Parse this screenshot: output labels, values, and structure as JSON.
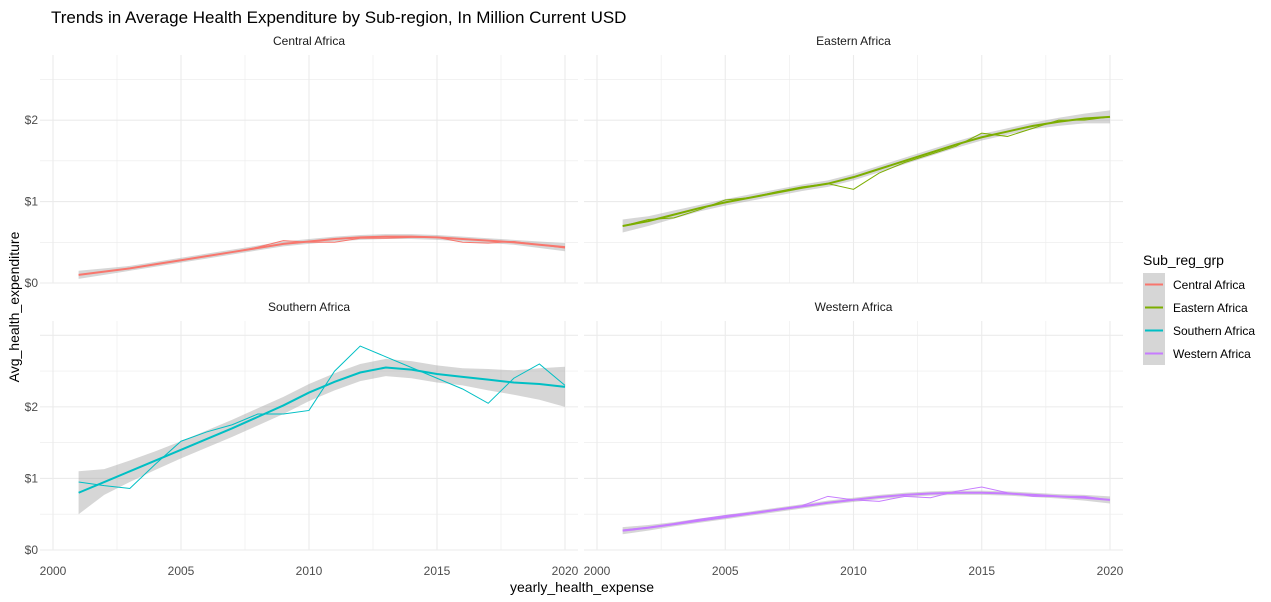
{
  "chart_data": {
    "type": "line",
    "title": "Trends in Average Health Expenditure by Sub-region, In Million Current  USD",
    "xlabel": "yearly_health_expense",
    "ylabel": "Avg_health_expenditure",
    "xlim": [
      2000,
      2020
    ],
    "x_ticks": [
      2000,
      2005,
      2010,
      2015,
      2020
    ],
    "x_tick_labels": [
      "2000",
      "2005",
      "2010",
      "2015",
      "2020"
    ],
    "y_ticks": [
      0,
      1,
      2
    ],
    "y_tick_labels": [
      "$0",
      "$1",
      "$2"
    ],
    "facet_rows": [
      {
        "panels": [
          "Central Africa",
          "Eastern Africa"
        ],
        "ylim": [
          0,
          2.8
        ]
      },
      {
        "panels": [
          "Southern Africa",
          "Western Africa"
        ],
        "ylim": [
          0,
          3.2
        ]
      }
    ],
    "grid": true,
    "legend": {
      "title": "Sub_reg_grp",
      "position": "right"
    },
    "smooth": "loess with grey confidence band",
    "x": [
      2001,
      2002,
      2003,
      2004,
      2005,
      2006,
      2007,
      2008,
      2009,
      2010,
      2011,
      2012,
      2013,
      2014,
      2015,
      2016,
      2017,
      2018,
      2019,
      2020
    ],
    "series": [
      {
        "name": "Central Africa",
        "color": "#F8766D",
        "values": [
          0.1,
          0.14,
          0.18,
          0.23,
          0.28,
          0.33,
          0.38,
          0.44,
          0.52,
          0.5,
          0.5,
          0.55,
          0.55,
          0.56,
          0.56,
          0.5,
          0.49,
          0.51,
          0.47,
          0.43
        ],
        "smooth": [
          0.1,
          0.14,
          0.18,
          0.23,
          0.28,
          0.33,
          0.38,
          0.43,
          0.48,
          0.51,
          0.54,
          0.56,
          0.57,
          0.57,
          0.56,
          0.54,
          0.52,
          0.5,
          0.47,
          0.44
        ],
        "band": [
          0.05,
          0.04,
          0.03,
          0.03,
          0.03,
          0.03,
          0.03,
          0.03,
          0.03,
          0.03,
          0.03,
          0.03,
          0.03,
          0.03,
          0.03,
          0.03,
          0.03,
          0.03,
          0.04,
          0.05
        ]
      },
      {
        "name": "Eastern Africa",
        "color": "#7CAE00",
        "values": [
          0.7,
          0.78,
          0.8,
          0.9,
          1.02,
          1.05,
          1.12,
          1.18,
          1.22,
          1.15,
          1.35,
          1.48,
          1.58,
          1.68,
          1.84,
          1.8,
          1.9,
          2.0,
          2.0,
          2.04
        ],
        "smooth": [
          0.7,
          0.76,
          0.84,
          0.92,
          0.99,
          1.05,
          1.11,
          1.17,
          1.22,
          1.3,
          1.4,
          1.5,
          1.6,
          1.7,
          1.79,
          1.86,
          1.93,
          1.98,
          2.02,
          2.04
        ],
        "band": [
          0.08,
          0.06,
          0.05,
          0.04,
          0.04,
          0.04,
          0.04,
          0.04,
          0.04,
          0.04,
          0.04,
          0.04,
          0.04,
          0.04,
          0.04,
          0.04,
          0.04,
          0.05,
          0.06,
          0.08
        ]
      },
      {
        "name": "Southern Africa",
        "color": "#00BFC4",
        "values": [
          0.95,
          0.9,
          0.86,
          1.2,
          1.52,
          1.65,
          1.75,
          1.9,
          1.9,
          1.95,
          2.5,
          2.85,
          2.7,
          2.55,
          2.4,
          2.25,
          2.05,
          2.4,
          2.6,
          2.3
        ],
        "smooth": [
          0.8,
          0.95,
          1.1,
          1.25,
          1.4,
          1.55,
          1.7,
          1.86,
          2.02,
          2.2,
          2.35,
          2.48,
          2.55,
          2.52,
          2.46,
          2.42,
          2.38,
          2.34,
          2.32,
          2.28
        ],
        "band": [
          0.3,
          0.18,
          0.15,
          0.13,
          0.12,
          0.12,
          0.12,
          0.12,
          0.12,
          0.12,
          0.12,
          0.12,
          0.12,
          0.12,
          0.12,
          0.12,
          0.15,
          0.17,
          0.22,
          0.28
        ]
      },
      {
        "name": "Western Africa",
        "color": "#C77CFF",
        "values": [
          0.28,
          0.32,
          0.37,
          0.43,
          0.48,
          0.52,
          0.57,
          0.62,
          0.75,
          0.7,
          0.68,
          0.75,
          0.73,
          0.82,
          0.88,
          0.8,
          0.75,
          0.75,
          0.75,
          0.7
        ],
        "smooth": [
          0.27,
          0.31,
          0.36,
          0.41,
          0.46,
          0.51,
          0.56,
          0.61,
          0.66,
          0.7,
          0.74,
          0.77,
          0.79,
          0.8,
          0.8,
          0.79,
          0.77,
          0.75,
          0.73,
          0.7
        ],
        "band": [
          0.05,
          0.04,
          0.03,
          0.03,
          0.03,
          0.03,
          0.03,
          0.03,
          0.03,
          0.03,
          0.03,
          0.03,
          0.03,
          0.03,
          0.03,
          0.03,
          0.03,
          0.03,
          0.04,
          0.05
        ]
      }
    ]
  }
}
